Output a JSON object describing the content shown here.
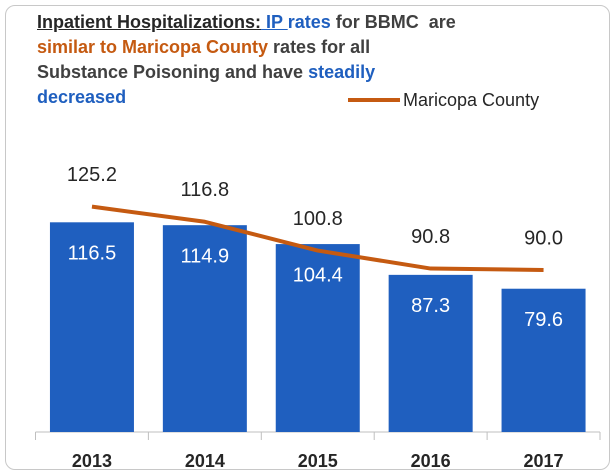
{
  "chart_data": {
    "type": "bar_line",
    "title": [
      {
        "text": "Inpatient Hospitalizations:",
        "color": "#262626",
        "underline": true
      },
      {
        "text": " IP ",
        "color": "#1f5fbf",
        "underline": true
      },
      {
        "text": "rates",
        "color": "#1f5fbf",
        "underline": false
      },
      {
        "text": " for BBMC  are ",
        "color": "#404040",
        "underline": false
      },
      {
        "text": "similar to Maricopa County",
        "color": "#c55a11",
        "underline": false
      },
      {
        "text": " rates for all Substance Poisoning and have ",
        "color": "#404040",
        "underline": false
      },
      {
        "text": "steadily decreased",
        "color": "#1f5fbf",
        "underline": false
      }
    ],
    "categories": [
      "2013",
      "2014",
      "2015",
      "2016",
      "2017"
    ],
    "series": [
      {
        "type": "bar",
        "color": "#1f5fbf",
        "values": [
          116.5,
          114.9,
          104.4,
          87.3,
          79.6
        ]
      },
      {
        "type": "line",
        "name": "Maricopa County",
        "color": "#c55a11",
        "values": [
          125.2,
          116.8,
          100.8,
          90.8,
          90.0
        ],
        "value_labels": [
          "125.2",
          "116.8",
          "100.8",
          "90.8",
          "90.0"
        ]
      }
    ],
    "ylim": [
      0,
      150
    ]
  }
}
